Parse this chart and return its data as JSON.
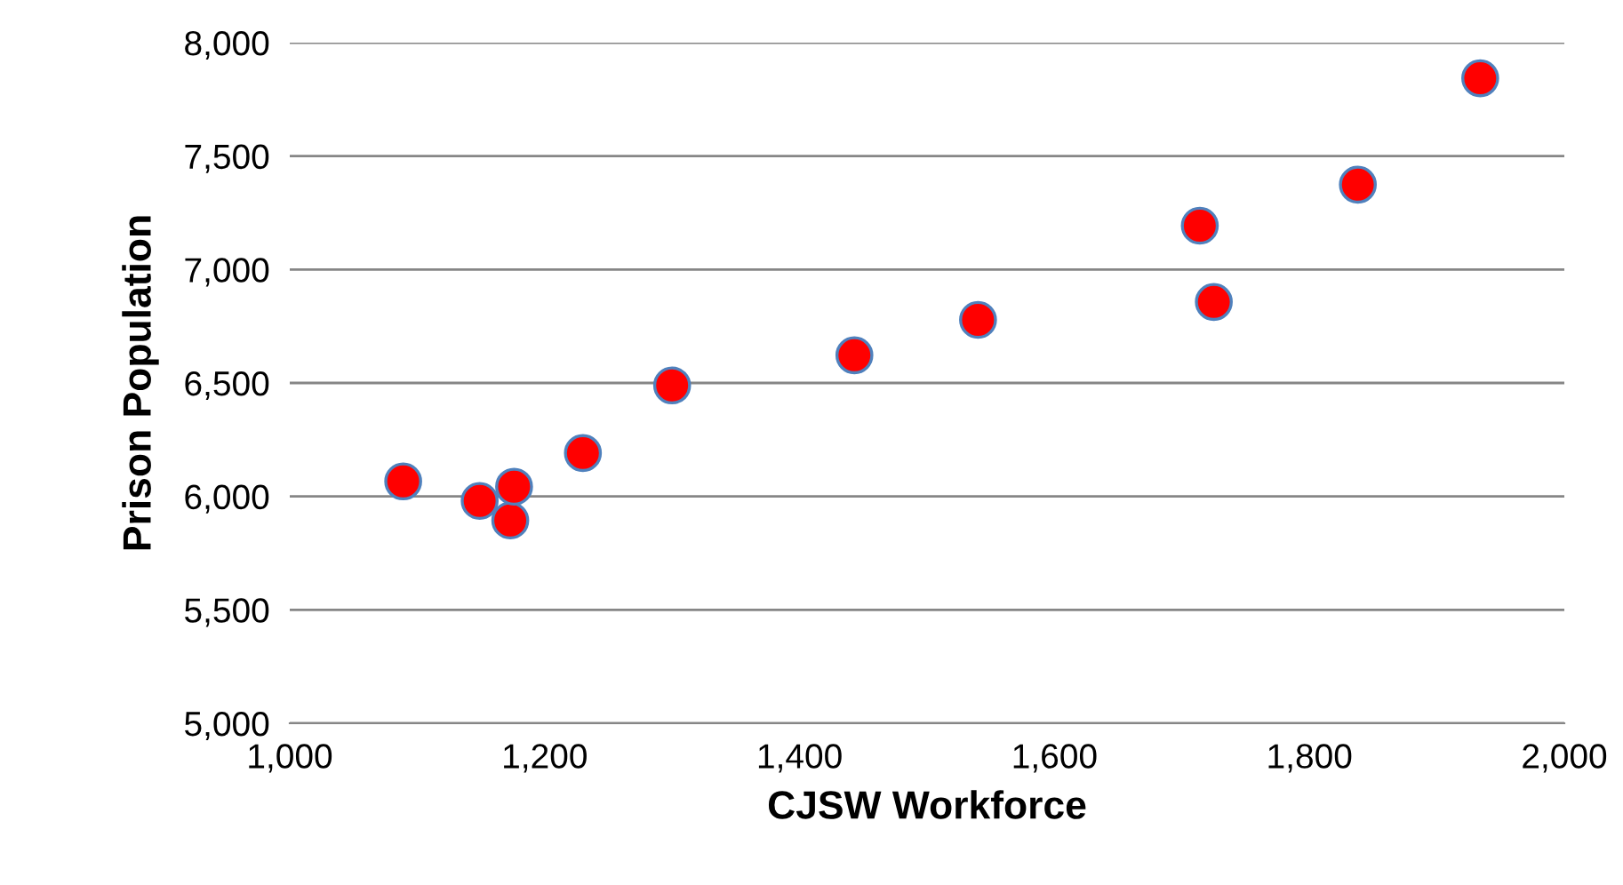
{
  "chart_data": {
    "type": "scatter",
    "xlabel": "CJSW Workforce",
    "ylabel": "Prison Population",
    "x": [
      1089,
      1149,
      1173,
      1176,
      1230,
      1300,
      1443,
      1540,
      1714,
      1725,
      1838,
      1934
    ],
    "values": [
      6066,
      5980,
      5894,
      6043,
      6191,
      6489,
      6622,
      6778,
      7193,
      6857,
      7374,
      7843
    ],
    "color": "#ff0000",
    "marker": "circle",
    "xlim": [
      1000,
      2000
    ],
    "xticks": [
      {
        "value": 1000,
        "label": "1,000"
      },
      {
        "value": 1200,
        "label": "1,200"
      },
      {
        "value": 1400,
        "label": "1,400"
      },
      {
        "value": 1600,
        "label": "1,600"
      },
      {
        "value": 1800,
        "label": "1,800"
      },
      {
        "value": 2000,
        "label": "2,000"
      }
    ],
    "ylim": [
      5000,
      8000
    ],
    "yticks": [
      {
        "value": 5000,
        "label": "5,000"
      },
      {
        "value": 5500,
        "label": "5,500"
      },
      {
        "value": 6000,
        "label": "6,000"
      },
      {
        "value": 6500,
        "label": "6,500"
      },
      {
        "value": 7000,
        "label": "7,000"
      },
      {
        "value": 7500,
        "label": "7,500"
      },
      {
        "value": 8000,
        "label": "8,000"
      }
    ],
    "grid": "y"
  }
}
